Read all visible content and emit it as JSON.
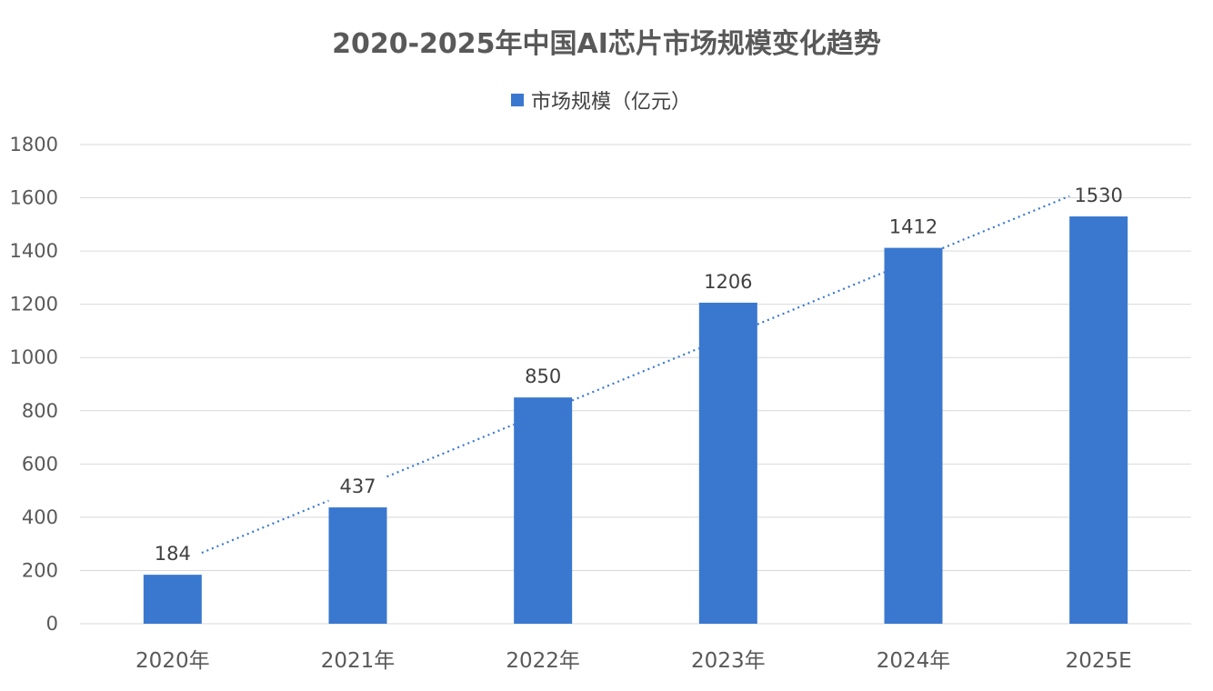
{
  "chart_data": {
    "type": "bar",
    "title": "2020-2025年中国AI芯片市场规模变化趋势",
    "categories": [
      "2020年",
      "2021年",
      "2022年",
      "2023年",
      "2024年",
      "2025E"
    ],
    "series": [
      {
        "name": "市场规模（亿元）",
        "values": [
          184,
          437,
          850,
          1206,
          1412,
          1530
        ],
        "color": "#3a78cf",
        "data_labels": [
          "184",
          "437",
          "850",
          "1206",
          "1412",
          "1530"
        ]
      }
    ],
    "trendline": {
      "type": "linear",
      "style": "dotted",
      "color": "#3a78cf"
    },
    "xlabel": "",
    "ylabel": "",
    "ylim": [
      0,
      1800
    ],
    "yticks": [
      0,
      200,
      400,
      600,
      800,
      1000,
      1200,
      1400,
      1600,
      1800
    ],
    "ytick_labels": [
      "0",
      "200",
      "400",
      "600",
      "800",
      "1000",
      "1200",
      "1400",
      "1600",
      "1800"
    ],
    "grid": true,
    "legend": "top-center"
  }
}
